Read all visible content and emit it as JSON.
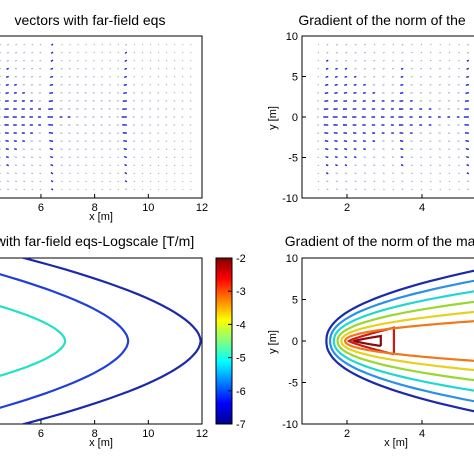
{
  "chart_data": [
    {
      "type": "quiver",
      "title": "vectors with far-field eqs",
      "xlabel": "x [m]",
      "ylabel": "",
      "xlim": [
        4.4,
        12
      ],
      "ylim": [
        -10,
        10
      ],
      "xticks": [
        6,
        8,
        10,
        12
      ],
      "grid": false,
      "arrow_color": "#1f1fcc",
      "field_note_columns": [
        {
          "x": 4.5,
          "len": 0.3
        },
        {
          "x": 4.8,
          "len": 0.85
        },
        {
          "x": 5.1,
          "len": 0.7
        },
        {
          "x": 5.4,
          "len": 0.6
        },
        {
          "x": 5.7,
          "len": 0.55
        },
        {
          "x": 6.0,
          "len": 0.45
        },
        {
          "x": 6.45,
          "len": 1.0
        },
        {
          "x": 6.8,
          "len": 0.4
        },
        {
          "x": 7.1,
          "len": 0.38
        },
        {
          "x": 7.4,
          "len": 0.35
        },
        {
          "x": 7.7,
          "len": 0.32
        },
        {
          "x": 8.0,
          "len": 0.3
        },
        {
          "x": 8.3,
          "len": 0.3
        },
        {
          "x": 8.6,
          "len": 0.28
        },
        {
          "x": 8.9,
          "len": 0.28
        },
        {
          "x": 9.2,
          "len": 0.95
        },
        {
          "x": 9.5,
          "len": 0.25
        },
        {
          "x": 9.8,
          "len": 0.22
        },
        {
          "x": 10.1,
          "len": 0.2
        },
        {
          "x": 10.4,
          "len": 0.18
        },
        {
          "x": 10.7,
          "len": 0.16
        },
        {
          "x": 11.0,
          "len": 0.15
        },
        {
          "x": 11.3,
          "len": 0.14
        },
        {
          "x": 11.6,
          "len": 0.13
        }
      ]
    },
    {
      "type": "quiver",
      "title": "Gradient of the norm of the",
      "xlabel": "",
      "ylabel": "y [m]",
      "xlim": [
        0.8,
        5.6
      ],
      "ylim": [
        -10,
        10
      ],
      "xticks": [
        2,
        4
      ],
      "yticks": [
        10,
        5,
        0,
        -5,
        -10
      ],
      "grid": false,
      "arrow_color": "#1f1fcc",
      "field_note_columns": [
        {
          "x": 1.25,
          "len": 0.2
        },
        {
          "x": 1.5,
          "len": 0.9
        },
        {
          "x": 1.75,
          "len": 0.85
        },
        {
          "x": 2.0,
          "len": 0.8
        },
        {
          "x": 2.25,
          "len": 0.72
        },
        {
          "x": 2.5,
          "len": 0.66
        },
        {
          "x": 2.75,
          "len": 0.6
        },
        {
          "x": 3.0,
          "len": 0.55
        },
        {
          "x": 3.25,
          "len": 0.52
        },
        {
          "x": 3.5,
          "len": 0.85
        },
        {
          "x": 3.75,
          "len": 0.48
        },
        {
          "x": 4.0,
          "len": 0.45
        },
        {
          "x": 4.25,
          "len": 0.42
        },
        {
          "x": 4.5,
          "len": 0.4
        },
        {
          "x": 4.75,
          "len": 0.38
        },
        {
          "x": 5.0,
          "len": 0.36
        },
        {
          "x": 5.25,
          "len": 0.9
        },
        {
          "x": 5.5,
          "len": 0.32
        }
      ]
    },
    {
      "type": "contour",
      "title": "with far-field eqs-Logscale [T/m]",
      "xlabel": "x [m]",
      "ylabel": "",
      "xlim": [
        4.4,
        12
      ],
      "ylim": [
        -10,
        10
      ],
      "xticks": [
        6,
        8,
        10,
        12
      ],
      "contours": [
        {
          "level": -4.5,
          "x_tip": 6.9,
          "half_height": 6.6,
          "color": "#22e0c8"
        },
        {
          "level": -5.2,
          "x_tip": 9.25,
          "half_height": 10.6,
          "color": "#1e40d8"
        },
        {
          "level": -6.0,
          "x_tip": 11.95,
          "half_height": 13.0,
          "color": "#1a2aa8"
        }
      ],
      "colorbar": {
        "ticks": [
          -2,
          -3,
          -4,
          -5,
          -6,
          -7
        ],
        "range": [
          -7,
          -2
        ]
      }
    },
    {
      "type": "contour",
      "title": "Gradient of the norm of the mag",
      "xlabel": "x [m]",
      "ylabel": "y [m]",
      "xlim": [
        0.8,
        5.6
      ],
      "ylim": [
        -10,
        10
      ],
      "xticks": [
        2,
        4
      ],
      "yticks": [
        10,
        5,
        0,
        -5,
        -10
      ],
      "contours": [
        {
          "x_tip": 2.2,
          "half_height": 0.6,
          "color": "#8a0a0a"
        },
        {
          "x_tip": 2.05,
          "half_height": 1.6,
          "color": "#d01818"
        },
        {
          "x_tip": 1.95,
          "half_height": 2.7,
          "color": "#f07818"
        },
        {
          "x_tip": 1.85,
          "half_height": 3.9,
          "color": "#e8d020"
        },
        {
          "x_tip": 1.75,
          "half_height": 5.2,
          "color": "#9ad830"
        },
        {
          "x_tip": 1.65,
          "half_height": 6.5,
          "color": "#20d8d0"
        },
        {
          "x_tip": 1.55,
          "half_height": 7.8,
          "color": "#2a90e8"
        },
        {
          "x_tip": 1.45,
          "half_height": 9.0,
          "color": "#1a2aa8"
        }
      ]
    }
  ]
}
